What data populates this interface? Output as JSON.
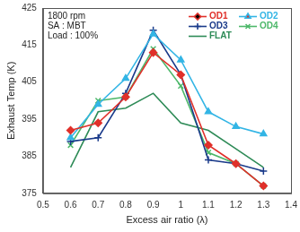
{
  "chart_data": {
    "type": "line",
    "x_label": "Excess air ratio (λ)",
    "y_label": "Exhaust Temp (K)",
    "annotations": [
      "1800 rpm",
      "SA : MBT",
      "Load : 100%"
    ],
    "x": [
      0.6,
      0.7,
      0.8,
      0.9,
      1.0,
      1.1,
      1.2,
      1.3
    ],
    "series": [
      {
        "name": "OD1",
        "color": "#e0302a",
        "marker": "diamond",
        "values": [
          392,
          394,
          401,
          413,
          407,
          388,
          383,
          377
        ]
      },
      {
        "name": "OD2",
        "color": "#33b5e5",
        "marker": "triangle",
        "values": [
          390,
          399,
          406,
          418,
          411,
          397,
          393,
          391
        ]
      },
      {
        "name": "OD3",
        "color": "#1a3a8a",
        "marker": "plus",
        "values": [
          389,
          390,
          402,
          419,
          407,
          384,
          383,
          381
        ]
      },
      {
        "name": "OD4",
        "color": "#4db86a",
        "marker": "x",
        "values": [
          388,
          400,
          401,
          414,
          404,
          386,
          383,
          377
        ]
      },
      {
        "name": "FLAT",
        "color": "#2e8b57",
        "marker": "none",
        "values": [
          382,
          397,
          398,
          402,
          394,
          392,
          387,
          382
        ]
      }
    ],
    "xlim": [
      0.5,
      1.4
    ],
    "xticks": [
      0.5,
      0.6,
      0.7,
      0.8,
      0.9,
      1.0,
      1.1,
      1.2,
      1.3,
      1.4
    ],
    "ylim": [
      375,
      425
    ],
    "yticks": [
      375,
      385,
      395,
      405,
      415,
      425
    ],
    "grid": false,
    "legend": "upper right"
  }
}
